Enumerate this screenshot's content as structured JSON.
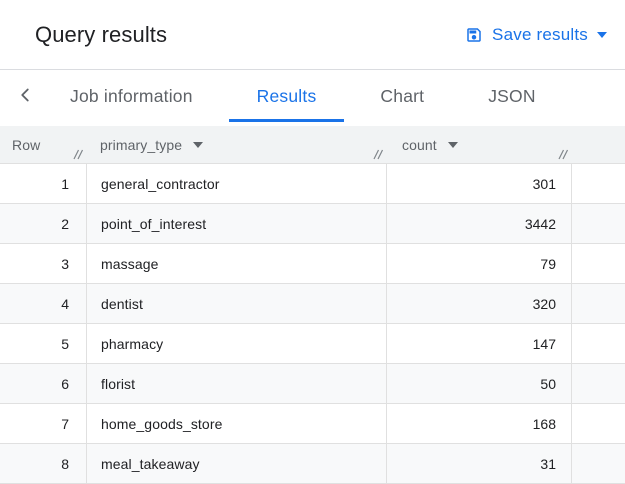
{
  "header": {
    "title": "Query results",
    "save_button": {
      "label": "Save results",
      "icon": "save-icon",
      "caret_icon": "dropdown-caret"
    }
  },
  "tabs": {
    "back_icon": "chevron-left",
    "items": [
      {
        "label": "Job information",
        "active": false
      },
      {
        "label": "Results",
        "active": true
      },
      {
        "label": "Chart",
        "active": false
      },
      {
        "label": "JSON",
        "active": false
      }
    ]
  },
  "table": {
    "columns": [
      {
        "label": "Row",
        "sortable": false,
        "resizable": true
      },
      {
        "label": "primary_type",
        "sortable": true,
        "resizable": true
      },
      {
        "label": "count",
        "sortable": true,
        "resizable": true
      }
    ],
    "rows": [
      {
        "row": "1",
        "primary_type": "general_contractor",
        "count": "301"
      },
      {
        "row": "2",
        "primary_type": "point_of_interest",
        "count": "3442"
      },
      {
        "row": "3",
        "primary_type": "massage",
        "count": "79"
      },
      {
        "row": "4",
        "primary_type": "dentist",
        "count": "320"
      },
      {
        "row": "5",
        "primary_type": "pharmacy",
        "count": "147"
      },
      {
        "row": "6",
        "primary_type": "florist",
        "count": "50"
      },
      {
        "row": "7",
        "primary_type": "home_goods_store",
        "count": "168"
      },
      {
        "row": "8",
        "primary_type": "meal_takeaway",
        "count": "31"
      }
    ]
  },
  "colors": {
    "accent": "#1a73e8",
    "text": "#202124",
    "muted": "#5f6368",
    "header_bg": "#f1f3f4",
    "stripe_bg": "#f8f9fa",
    "border": "#e0e0e0",
    "divider": "#dadce0"
  }
}
